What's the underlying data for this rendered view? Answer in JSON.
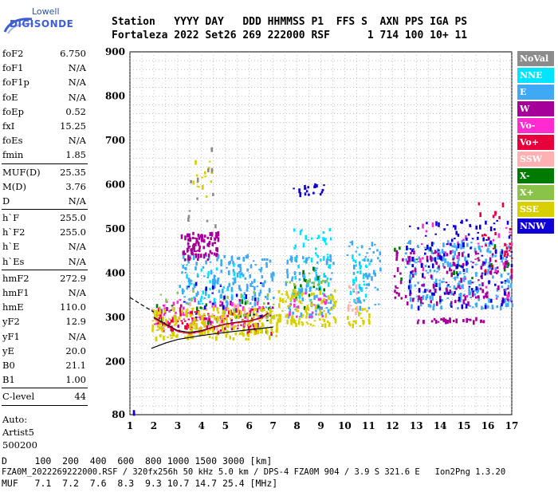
{
  "logo": {
    "line1": "Lowell",
    "line2": "DIGISONDE"
  },
  "header": {
    "row1": "Station   YYYY DAY   DDD HHMMSS P1  FFS S  AXN PPS IGA PS",
    "row2": "Fortaleza 2022 Set26 269 222000 RSF      1 714 100 10+ 11"
  },
  "params": {
    "group1": [
      {
        "k": "foF2",
        "v": "6.750"
      },
      {
        "k": "foF1",
        "v": "N/A"
      },
      {
        "k": "foF1p",
        "v": "N/A"
      },
      {
        "k": "foE",
        "v": "N/A"
      },
      {
        "k": "foEp",
        "v": "0.52"
      },
      {
        "k": "fxI",
        "v": "15.25"
      },
      {
        "k": "foEs",
        "v": "N/A"
      },
      {
        "k": "fmin",
        "v": "1.85"
      }
    ],
    "group2": [
      {
        "k": "MUF(D)",
        "v": "25.35"
      },
      {
        "k": "M(D)",
        "v": "3.76"
      },
      {
        "k": "D",
        "v": "N/A"
      }
    ],
    "group3": [
      {
        "k": "h`F",
        "v": "255.0"
      },
      {
        "k": "h`F2",
        "v": "255.0"
      },
      {
        "k": "h`E",
        "v": "N/A"
      },
      {
        "k": "h`Es",
        "v": "N/A"
      }
    ],
    "group4": [
      {
        "k": "hmF2",
        "v": "272.9"
      },
      {
        "k": "hmF1",
        "v": "N/A"
      },
      {
        "k": "hmE",
        "v": "110.0"
      },
      {
        "k": "yF2",
        "v": "12.9"
      },
      {
        "k": "yF1",
        "v": "N/A"
      },
      {
        "k": "yE",
        "v": "20.0"
      },
      {
        "k": "B0",
        "v": "21.1"
      },
      {
        "k": "B1",
        "v": "1.00"
      }
    ],
    "group5": [
      {
        "k": "C-level",
        "v": "44"
      }
    ],
    "autoscale": {
      "label": "Auto:",
      "artist": "Artist5",
      "version": "500200"
    }
  },
  "legend": [
    {
      "label": "NoVal",
      "color": "#8c8c8c"
    },
    {
      "label": "NNE",
      "color": "#00e5ff"
    },
    {
      "label": "E",
      "color": "#3fa9f5"
    },
    {
      "label": "W",
      "color": "#a5009a"
    },
    {
      "label": "Vo-",
      "color": "#ff2bd0"
    },
    {
      "label": "Vo+",
      "color": "#e8003c"
    },
    {
      "label": "SSW",
      "color": "#ffb0b0"
    },
    {
      "label": "X-",
      "color": "#007a00"
    },
    {
      "label": "X+",
      "color": "#8bc34a"
    },
    {
      "label": "SSE",
      "color": "#d8cf00"
    },
    {
      "label": "NNW",
      "color": "#1000d8"
    }
  ],
  "bottom": {
    "row1": "D     100  200  400  600  800 1000 1500 3000 [km]",
    "row2": "MUF   7.1  7.2  7.6  8.3  9.3 10.7 14.7 25.4 [MHz]"
  },
  "footer": "FZA0M_2022269222000.RSF / 320fx256h 50 kHz 5.0 km / DPS-4 FZA0M 904 / 3.9 S 321.6 E   Ion2Png 1.3.20",
  "chart_data": {
    "type": "scatter",
    "title": "",
    "xlabel": "",
    "ylabel": "",
    "xlim": [
      1,
      17
    ],
    "ylim": [
      80,
      900
    ],
    "xticks": [
      1,
      2,
      3,
      4,
      5,
      6,
      7,
      8,
      9,
      10,
      11,
      12,
      13,
      14,
      15,
      16,
      17
    ],
    "yticks": [
      80,
      200,
      300,
      400,
      500,
      600,
      700,
      800,
      900
    ],
    "grid": true,
    "legend_position": "right",
    "series": [
      {
        "name": "NNE",
        "color": "#00e5ff",
        "clusters": [
          [
            7.7,
            9.4,
            330,
            500,
            60
          ],
          [
            10.2,
            11.0,
            330,
            470,
            30
          ],
          [
            3.2,
            5.8,
            330,
            420,
            40
          ]
        ]
      },
      {
        "name": "E",
        "color": "#3fa9f5",
        "clusters": [
          [
            3.0,
            7.0,
            320,
            440,
            160
          ],
          [
            7.5,
            9.5,
            300,
            440,
            90
          ],
          [
            10.0,
            11.5,
            320,
            470,
            50
          ],
          [
            12.5,
            17.0,
            320,
            470,
            260
          ]
        ]
      },
      {
        "name": "W",
        "color": "#a5009a",
        "clusters": [
          [
            3.1,
            4.7,
            430,
            490,
            90
          ],
          [
            12.0,
            17.0,
            330,
            450,
            140
          ],
          [
            13.0,
            16.0,
            288,
            296,
            30
          ],
          [
            1.9,
            7.0,
            270,
            340,
            30
          ]
        ]
      },
      {
        "name": "Vo-",
        "color": "#ff2bd0",
        "clusters": [
          [
            1.9,
            7.2,
            280,
            340,
            60
          ],
          [
            7.6,
            9.3,
            300,
            360,
            20
          ],
          [
            13.0,
            17.0,
            340,
            520,
            30
          ]
        ]
      },
      {
        "name": "Vo+",
        "color": "#e8003c",
        "clusters": [
          [
            2.0,
            7.0,
            260,
            320,
            90
          ],
          [
            15.5,
            17.0,
            400,
            560,
            30
          ]
        ]
      },
      {
        "name": "SSW",
        "color": "#ffb0b0",
        "clusters": [
          [
            2.0,
            7.0,
            270,
            330,
            40
          ],
          [
            10.0,
            10.5,
            300,
            380,
            15
          ]
        ]
      },
      {
        "name": "X-",
        "color": "#007a00",
        "clusters": [
          [
            2.0,
            7.0,
            280,
            340,
            20
          ],
          [
            7.6,
            9.2,
            320,
            420,
            15
          ],
          [
            12.0,
            17.0,
            350,
            460,
            15
          ]
        ]
      },
      {
        "name": "X+",
        "color": "#8bc34a",
        "clusters": [
          [
            2.0,
            7.0,
            290,
            360,
            25
          ],
          [
            7.5,
            9.3,
            320,
            400,
            15
          ]
        ]
      },
      {
        "name": "SSE",
        "color": "#d8cf00",
        "clusters": [
          [
            1.9,
            7.2,
            250,
            320,
            220
          ],
          [
            7.2,
            9.6,
            280,
            360,
            100
          ],
          [
            3.6,
            4.4,
            560,
            660,
            15
          ],
          [
            10.0,
            11.0,
            280,
            320,
            20
          ]
        ]
      },
      {
        "name": "NNW",
        "color": "#1000d8",
        "clusters": [
          [
            7.8,
            9.2,
            575,
            600,
            20
          ],
          [
            12.5,
            17.0,
            320,
            520,
            120
          ],
          [
            3.0,
            7.0,
            300,
            380,
            20
          ],
          [
            1.05,
            1.15,
            82,
            86,
            2
          ]
        ]
      },
      {
        "name": "NoVal",
        "color": "#8c8c8c",
        "clusters": [
          [
            3.4,
            4.6,
            500,
            680,
            12
          ]
        ]
      }
    ],
    "fit_lines": [
      {
        "color": "#000",
        "points": [
          [
            1.9,
            230
          ],
          [
            2.5,
            242
          ],
          [
            3,
            250
          ],
          [
            4,
            259
          ],
          [
            5,
            266
          ],
          [
            6,
            272
          ],
          [
            7,
            278
          ]
        ]
      },
      {
        "color": "#000",
        "style": "dashed",
        "points": [
          [
            1.0,
            345
          ],
          [
            1.5,
            328
          ],
          [
            2.0,
            312
          ]
        ]
      },
      {
        "color": "#000",
        "points": [
          [
            2.0,
            300
          ],
          [
            2.5,
            285
          ],
          [
            3.0,
            270
          ],
          [
            3.5,
            266
          ],
          [
            4.0,
            270
          ],
          [
            4.5,
            278
          ],
          [
            5.0,
            285
          ],
          [
            5.5,
            289
          ],
          [
            6.0,
            292
          ],
          [
            6.5,
            299
          ],
          [
            6.8,
            310
          ]
        ]
      },
      {
        "color": "#e8003c",
        "points": [
          [
            2.0,
            298
          ],
          [
            2.5,
            282
          ],
          [
            3.0,
            268
          ],
          [
            3.5,
            263
          ],
          [
            4.0,
            268
          ],
          [
            4.5,
            277
          ],
          [
            5.0,
            284
          ],
          [
            5.5,
            288
          ],
          [
            6.0,
            291
          ],
          [
            6.5,
            298
          ],
          [
            6.8,
            309
          ]
        ]
      }
    ]
  }
}
